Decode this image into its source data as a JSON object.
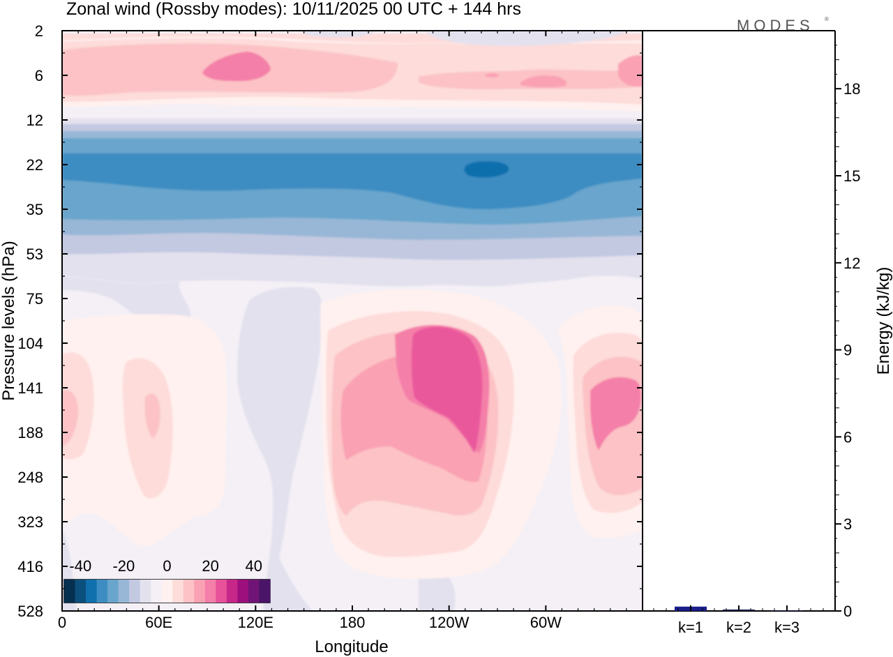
{
  "chart_data": [
    {
      "type": "heatmap",
      "title": "Zonal wind (Rossby modes):  10/11/2025  00 UTC  + 144 hrs",
      "xlabel": "Longitude",
      "ylabel": "Pressure levels (hPa)",
      "x_ticks": [
        "0",
        "60E",
        "120E",
        "180",
        "120W",
        "60W"
      ],
      "y_ticks": [
        "2",
        "6",
        "12",
        "22",
        "35",
        "53",
        "75",
        "104",
        "141",
        "188",
        "248",
        "323",
        "416",
        "528"
      ],
      "colorbar": {
        "tick_labels": [
          "-40",
          "-20",
          "0",
          "20",
          "40"
        ],
        "levels": [
          -45,
          -40,
          -35,
          -30,
          -25,
          -20,
          -15,
          -10,
          -5,
          0,
          5,
          10,
          15,
          20,
          25,
          30,
          35,
          40,
          45
        ],
        "colors": [
          "#06304f",
          "#0b4f7c",
          "#1070ad",
          "#3d8dc2",
          "#69a5cc",
          "#98b7d6",
          "#c3c9e1",
          "#e3e1ee",
          "#f4f0f6",
          "#fff1ef",
          "#fddcda",
          "#fcc2c5",
          "#faa1b4",
          "#f47fa8",
          "#e7529a",
          "#c8278a",
          "#9c0f7d",
          "#711477",
          "#4a1468"
        ]
      },
      "field_description_levels": [
        {
          "level": "2-12 hPa",
          "zonal_wind_ms": "5 to 20"
        },
        {
          "level": "16-35 hPa",
          "zonal_wind_ms": "-5 to -35"
        },
        {
          "level": "53-75 hPa",
          "zonal_wind_ms": "-5 to -10"
        },
        {
          "level": "104-323 hPa, 180-100W",
          "zonal_wind_ms": "5 to 25"
        }
      ]
    },
    {
      "type": "bar",
      "categories": [
        "k=1",
        "k=2",
        "k=3"
      ],
      "values": [
        0.15,
        0.05,
        0.02
      ],
      "ylabel": "Energy (kJ/kg)",
      "ylim": [
        0,
        20
      ],
      "y_ticks": [
        "0",
        "3",
        "6",
        "9",
        "12",
        "15",
        "18"
      ]
    }
  ],
  "logo": {
    "text": "MODES",
    "mark": "®"
  }
}
